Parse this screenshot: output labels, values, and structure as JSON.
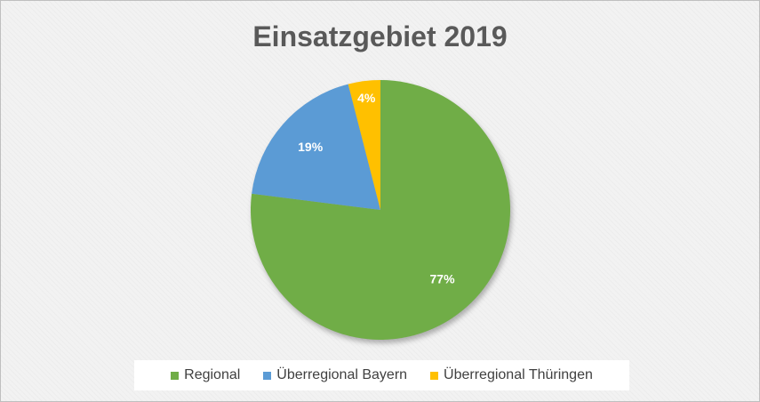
{
  "chart_data": {
    "type": "pie",
    "title": "Einsatzgebiet 2019",
    "slices": [
      {
        "label": "Regional",
        "value": 77,
        "display": "77%",
        "color": "#70ad47"
      },
      {
        "label": "Überregional Bayern",
        "value": 19,
        "display": "19%",
        "color": "#5b9bd5"
      },
      {
        "label": "Überregional Thüringen",
        "value": 4,
        "display": "4%",
        "color": "#ffc000"
      }
    ],
    "legend_position": "bottom"
  }
}
